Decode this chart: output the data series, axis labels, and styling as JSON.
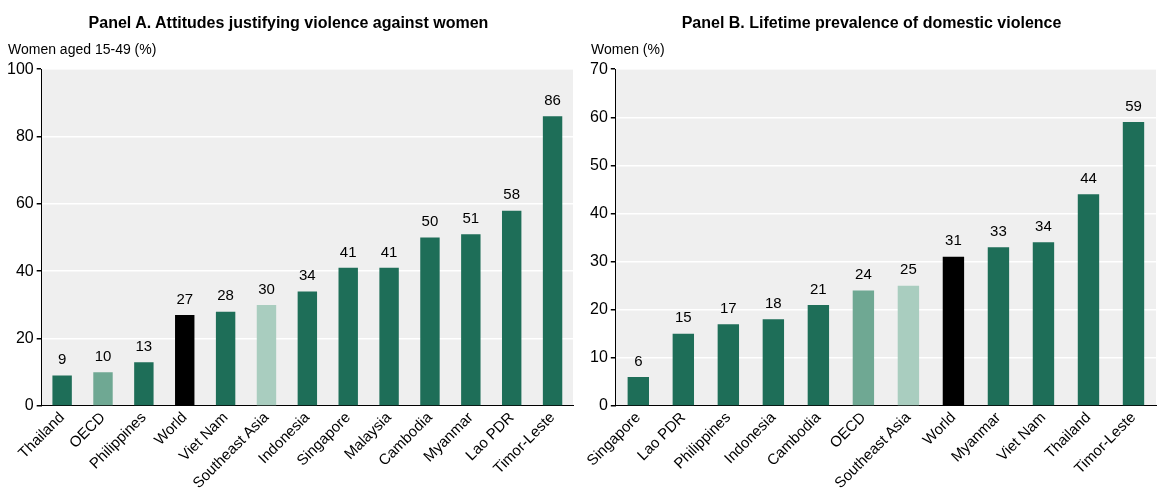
{
  "chart_data": [
    {
      "type": "bar",
      "title": "Panel A. Attitudes justifying violence against women",
      "ylabel": "Women aged 15-49 (%)",
      "categories": [
        "Thailand",
        "OECD",
        "Philippines",
        "World",
        "Viet Nam",
        "Southeast Asia",
        "Indonesia",
        "Singapore",
        "Malaysia",
        "Cambodia",
        "Myanmar",
        "Lao PDR",
        "Timor-Leste"
      ],
      "values": [
        9,
        10,
        13,
        27,
        28,
        30,
        34,
        41,
        41,
        50,
        51,
        58,
        86
      ],
      "colors": [
        "#1e6e58",
        "#6fa893",
        "#1e6e58",
        "#000000",
        "#1e6e58",
        "#a9cdbf",
        "#1e6e58",
        "#1e6e58",
        "#1e6e58",
        "#1e6e58",
        "#1e6e58",
        "#1e6e58",
        "#1e6e58"
      ],
      "ylim": [
        0,
        100
      ],
      "yticks": [
        0,
        20,
        40,
        60,
        80,
        100
      ],
      "grid": "y",
      "legend": false,
      "data_labels": true
    },
    {
      "type": "bar",
      "title": "Panel B. Lifetime prevalence of domestic violence",
      "ylabel": "Women (%)",
      "categories": [
        "Singapore",
        "Lao PDR",
        "Philippines",
        "Indonesia",
        "Cambodia",
        "OECD",
        "Southeast Asia",
        "World",
        "Myanmar",
        "Viet Nam",
        "Thailand",
        "Timor-Leste"
      ],
      "values": [
        6,
        15,
        17,
        18,
        21,
        24,
        25,
        31,
        33,
        34,
        44,
        59
      ],
      "colors": [
        "#1e6e58",
        "#1e6e58",
        "#1e6e58",
        "#1e6e58",
        "#1e6e58",
        "#6fa893",
        "#a9cdbf",
        "#000000",
        "#1e6e58",
        "#1e6e58",
        "#1e6e58",
        "#1e6e58"
      ],
      "ylim": [
        0,
        70
      ],
      "yticks": [
        0,
        10,
        20,
        30,
        40,
        50,
        60,
        70
      ],
      "grid": "y",
      "legend": false,
      "data_labels": true
    }
  ]
}
